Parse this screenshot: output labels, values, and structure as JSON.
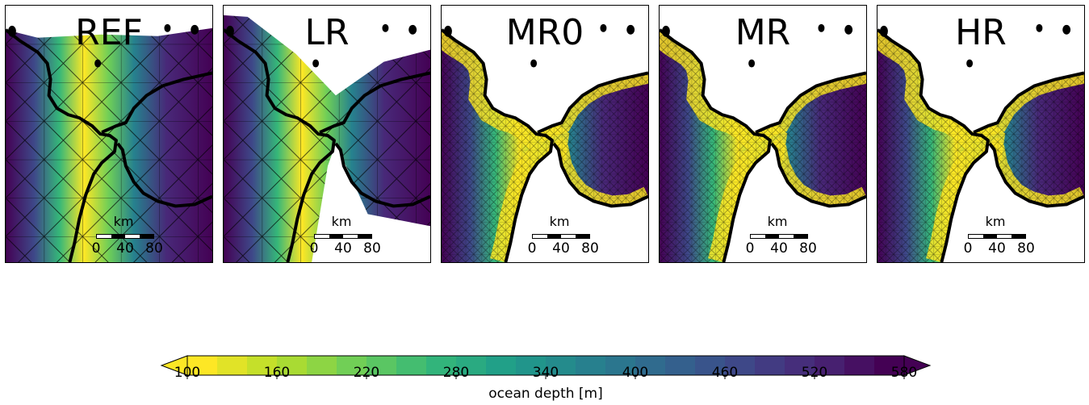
{
  "panels": [
    {
      "title": "REF",
      "mesh": "coarse"
    },
    {
      "title": "LR",
      "mesh": "coarse"
    },
    {
      "title": "MR0",
      "mesh": "fine"
    },
    {
      "title": "MR",
      "mesh": "fine"
    },
    {
      "title": "HR",
      "mesh": "fine"
    }
  ],
  "scalebar": {
    "unit": "km",
    "ticks": [
      "0",
      "40",
      "80"
    ]
  },
  "colorbar": {
    "label": "ocean depth [m]",
    "min": 100,
    "max": 580,
    "ticks": [
      "100",
      "160",
      "220",
      "280",
      "340",
      "400",
      "460",
      "520",
      "580"
    ],
    "colormap": "viridis-reversed",
    "colors": [
      "#fde725",
      "#b5de2b",
      "#6ece58",
      "#35b779",
      "#1f9e89",
      "#26828e",
      "#31688e",
      "#3e4989",
      "#482878",
      "#440154"
    ]
  },
  "colors": {
    "land": "#ffffff",
    "coastline": "#000000",
    "mesh_line": "#000000"
  }
}
